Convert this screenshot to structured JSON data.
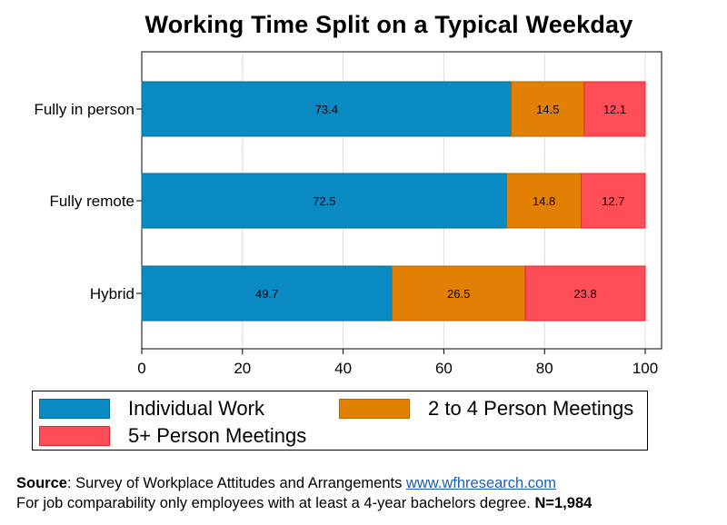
{
  "chart_data": {
    "type": "bar",
    "orientation": "horizontal",
    "stacked": true,
    "title": "Working Time Split on a Typical Weekday",
    "xlabel": "",
    "ylabel": "",
    "xlim": [
      0,
      100
    ],
    "x_ticks": [
      "0",
      "20",
      "40",
      "60",
      "80",
      "100"
    ],
    "grid": true,
    "legend_position": "bottom",
    "categories": [
      "Fully in person",
      "Fully remote",
      "Hybrid"
    ],
    "series": [
      {
        "name": "Individual Work",
        "color": "#0a8ac2",
        "values": [
          73.4,
          72.5,
          49.7
        ]
      },
      {
        "name": "2 to 4 Person Meetings",
        "color": "#e18002",
        "values": [
          14.5,
          14.8,
          26.5
        ]
      },
      {
        "name": "5+ Person Meetings",
        "color": "#ff4e58",
        "values": [
          12.1,
          12.7,
          23.8
        ]
      }
    ],
    "data_labels": [
      [
        "73.4",
        "14.5",
        "12.1"
      ],
      [
        "72.5",
        "14.8",
        "12.7"
      ],
      [
        "49.7",
        "26.5",
        "23.8"
      ]
    ]
  },
  "footer": {
    "source_label": "Source",
    "source_text": ": Survey of Workplace Attitudes and Arrangements ",
    "source_link": "www.wfhresearch.com",
    "note_text": "For job comparability only employees with at least a 4-year bachelors degree. ",
    "sample_size": "N=1,984"
  }
}
